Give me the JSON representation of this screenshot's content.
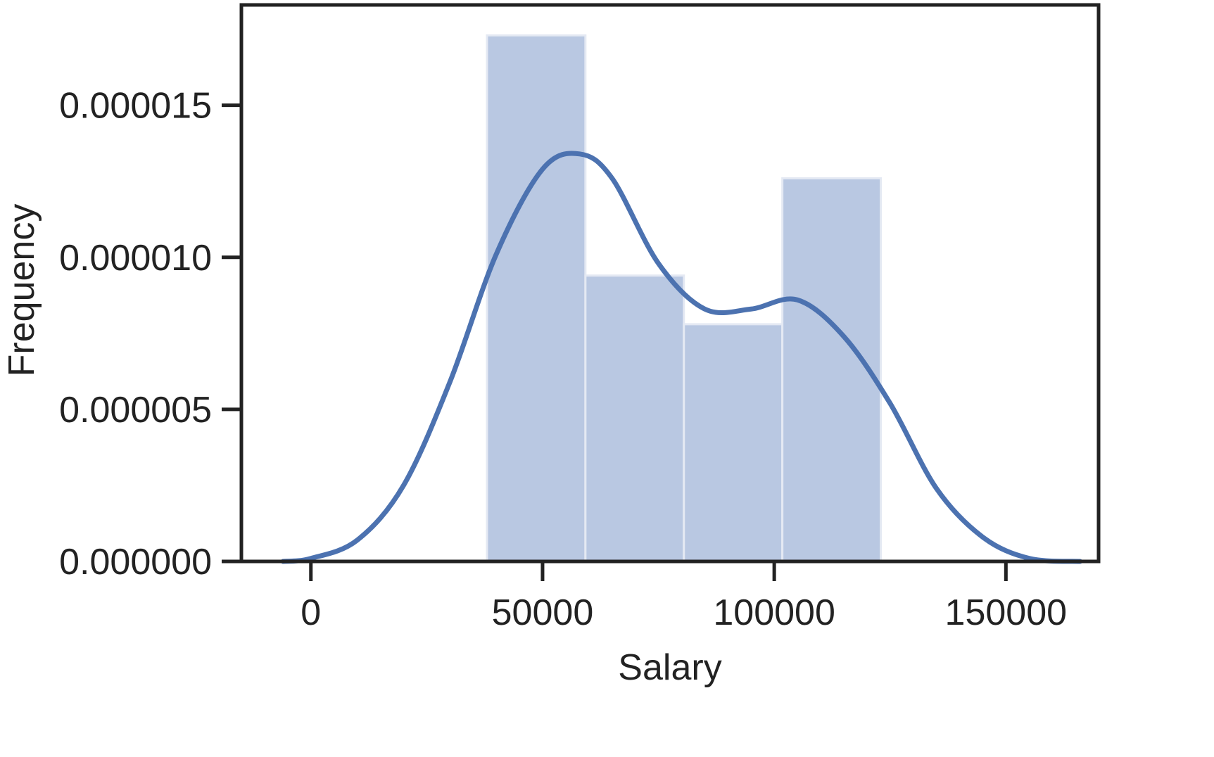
{
  "chart_data": {
    "type": "bar",
    "title": "",
    "xlabel": "Salary",
    "ylabel": "Frequency",
    "xlim": [
      -15000,
      170000
    ],
    "ylim": [
      0,
      1.83e-05
    ],
    "x_ticks": [
      0,
      50000,
      100000,
      150000
    ],
    "x_tick_labels": [
      "0",
      "50000",
      "100000",
      "150000"
    ],
    "y_ticks": [
      0,
      5e-06,
      1e-05,
      1.5e-05
    ],
    "y_tick_labels": [
      "0.000000",
      "0.000005",
      "0.000010",
      "0.000015"
    ],
    "grid": false,
    "legend": "none",
    "histogram_bins": [
      {
        "start": 38000,
        "end": 59250,
        "density": 1.73e-05
      },
      {
        "start": 59250,
        "end": 80500,
        "density": 9.4e-06
      },
      {
        "start": 80500,
        "end": 101750,
        "density": 7.8e-06
      },
      {
        "start": 101750,
        "end": 123000,
        "density": 1.26e-05
      }
    ],
    "kde_curve": {
      "x": [
        -6000,
        0,
        10000,
        20000,
        30000,
        40000,
        50000,
        58000,
        65000,
        75000,
        85000,
        95000,
        105000,
        115000,
        125000,
        135000,
        145000,
        155000,
        166000
      ],
      "y": [
        0.0,
        1e-07,
        7e-07,
        2.5e-06,
        5.9e-06,
        1.01e-05,
        1.29e-05,
        1.34e-05,
        1.26e-05,
        9.8e-06,
        8.3e-06,
        8.3e-06,
        8.6e-06,
        7.4e-06,
        5.2e-06,
        2.4e-06,
        8e-07,
        1e-07,
        0.0
      ]
    },
    "colors": {
      "bars": "#b9c8e2",
      "bar_edge": "#e4e9f3",
      "kde": "#4c72b0",
      "axes": "#222222"
    }
  }
}
